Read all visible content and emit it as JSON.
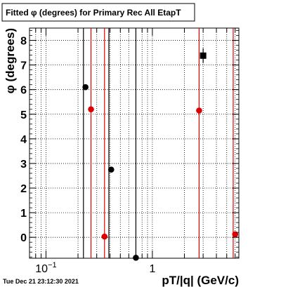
{
  "title": "Fitted φ (degrees) for Primary Rec All EtapT",
  "timestamp": "Tue Dec 21 23:12:30 2021",
  "chart_data": {
    "type": "scatter",
    "title": "Fitted φ (degrees) for Primary Rec All EtapT",
    "xlabel": "pT/|q| (GeV/c)",
    "ylabel": "φ (degrees)",
    "xscale": "log",
    "xlim": [
      0.07,
      6.5
    ],
    "ylim": [
      -0.85,
      8.5
    ],
    "grid": true,
    "yticks": [
      0,
      1,
      2,
      3,
      4,
      5,
      6,
      7,
      8
    ],
    "xticks_major": [
      {
        "value": 0.1,
        "base": "10",
        "exp": "−1"
      },
      {
        "value": 1,
        "base": "1",
        "exp": ""
      }
    ],
    "series": [
      {
        "color": "#000000",
        "marker": "circle",
        "points": [
          {
            "x": 0.235,
            "y": 6.1
          },
          {
            "x": 0.41,
            "y": 2.75
          },
          {
            "x": 0.7,
            "y": -0.83
          }
        ],
        "vlines": [
          0.225,
          0.39,
          0.7
        ]
      },
      {
        "color": "#dd0000",
        "marker": "circle",
        "points": [
          {
            "x": 0.265,
            "y": 5.2
          },
          {
            "x": 0.355,
            "y": 0.03
          },
          {
            "x": 2.75,
            "y": 5.15
          },
          {
            "x": 6.0,
            "y": 0.12
          }
        ],
        "vlines": [
          0.265,
          0.355,
          2.75,
          5.75
        ]
      },
      {
        "color": "#000000",
        "marker": "square",
        "points": [
          {
            "x": 3.0,
            "y": 7.38,
            "yerr": 0.3
          }
        ],
        "vlines": []
      }
    ]
  }
}
